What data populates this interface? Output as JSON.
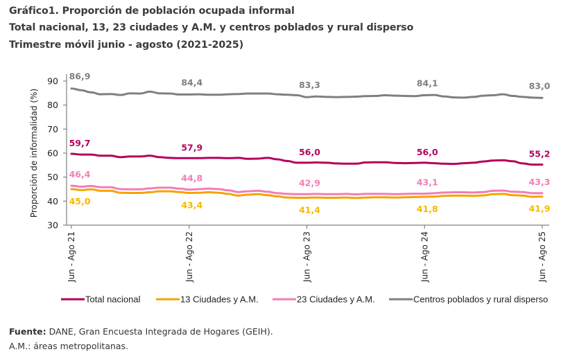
{
  "header": {
    "title_line1": "Gráfico1. Proporción de población ocupada informal",
    "title_line2": "Total nacional, 13, 23 ciudades y A.M. y centros poblados y rural disperso",
    "title_line3": "Trimestre móvil junio - agosto (2021-2025)"
  },
  "footer": {
    "source_label": "Fuente:",
    "source_text": " DANE, Gran Encuesta Integrada de Hogares (GEIH).",
    "note": "A.M.: áreas metropolitanas."
  },
  "chart_data": {
    "type": "line",
    "title": "Gráfico1. Proporción de población ocupada informal",
    "subtitle": "Total nacional, 13, 23 ciudades y A.M. y centros poblados y rural disperso — Trimestre móvil junio - agosto (2021-2025)",
    "xlabel": "",
    "ylabel": "Proporción de informalidad (%)",
    "ylim": [
      30,
      90
    ],
    "yticks": [
      30,
      40,
      50,
      60,
      70,
      80,
      90
    ],
    "grid": false,
    "legend_position": "bottom",
    "x_tick_labels": [
      "Jun - Ago 21",
      "Jun - Ago 22",
      "Jun - Ago 23",
      "Jun - Ago 24",
      "Jun - Ago 25"
    ],
    "x_tick_indices": [
      0,
      12,
      24,
      36,
      48
    ],
    "n_points": 49,
    "series": [
      {
        "name": "Total nacional",
        "color": "#B5005B",
        "values": [
          59.7,
          59.4,
          59.4,
          58.9,
          58.9,
          58.3,
          58.6,
          58.6,
          58.9,
          58.3,
          58.0,
          57.9,
          57.9,
          57.9,
          58.0,
          58.0,
          57.9,
          58.0,
          57.6,
          57.7,
          58.0,
          57.4,
          56.7,
          56.0,
          56.0,
          56.1,
          56.0,
          55.7,
          55.6,
          55.6,
          56.1,
          56.2,
          56.2,
          55.9,
          55.8,
          55.9,
          56.0,
          55.8,
          55.6,
          55.5,
          55.8,
          56.0,
          56.5,
          56.9,
          57.0,
          56.6,
          55.7,
          55.2,
          55.2
        ],
        "labels": [
          {
            "index": 0,
            "text": "59,7"
          },
          {
            "index": 12,
            "text": "57,9"
          },
          {
            "index": 24,
            "text": "56,0"
          },
          {
            "index": 36,
            "text": "56,0"
          },
          {
            "index": 48,
            "text": "55,2"
          }
        ]
      },
      {
        "name": "13 Ciudades y A.M.",
        "color": "#F5A300",
        "values": [
          45.0,
          44.6,
          44.9,
          44.3,
          44.3,
          43.5,
          43.4,
          43.4,
          43.7,
          44.1,
          44.1,
          43.8,
          43.4,
          43.5,
          43.7,
          43.5,
          43.0,
          42.3,
          42.7,
          42.9,
          42.5,
          42.0,
          41.5,
          41.4,
          41.4,
          41.5,
          41.4,
          41.4,
          41.5,
          41.3,
          41.5,
          41.6,
          41.6,
          41.5,
          41.6,
          41.7,
          41.8,
          41.9,
          42.2,
          42.3,
          42.3,
          42.2,
          42.4,
          42.9,
          43.0,
          42.5,
          42.3,
          41.8,
          41.9
        ],
        "labels": [
          {
            "index": 0,
            "text": "45,0"
          },
          {
            "index": 12,
            "text": "43,4"
          },
          {
            "index": 24,
            "text": "41,4"
          },
          {
            "index": 36,
            "text": "41,8"
          },
          {
            "index": 48,
            "text": "41,9"
          }
        ]
      },
      {
        "name": "23 Ciudades y A.M.",
        "color": "#F27DB5",
        "values": [
          46.4,
          46.0,
          46.3,
          45.8,
          45.8,
          45.0,
          44.9,
          44.9,
          45.3,
          45.6,
          45.6,
          45.2,
          44.8,
          45.0,
          45.2,
          45.0,
          44.5,
          43.8,
          44.1,
          44.3,
          43.9,
          43.3,
          43.0,
          42.9,
          42.9,
          43.0,
          42.9,
          42.9,
          43.0,
          42.8,
          43.0,
          43.0,
          43.0,
          42.9,
          43.0,
          43.1,
          43.1,
          43.3,
          43.6,
          43.7,
          43.7,
          43.6,
          43.8,
          44.3,
          44.4,
          43.9,
          43.8,
          43.3,
          43.3
        ],
        "labels": [
          {
            "index": 0,
            "text": "46,4"
          },
          {
            "index": 12,
            "text": "44,8"
          },
          {
            "index": 24,
            "text": "42,9"
          },
          {
            "index": 36,
            "text": "43,1"
          },
          {
            "index": 48,
            "text": "43,3"
          }
        ]
      },
      {
        "name": "Centros poblados y rural disperso",
        "color": "#7F7F7F",
        "values": [
          86.9,
          86.2,
          85.3,
          84.5,
          84.6,
          84.2,
          84.9,
          84.8,
          85.6,
          84.9,
          84.8,
          84.4,
          84.4,
          84.5,
          84.3,
          84.3,
          84.5,
          84.6,
          84.8,
          84.8,
          84.8,
          84.5,
          84.3,
          84.1,
          83.3,
          83.6,
          83.4,
          83.3,
          83.4,
          83.5,
          83.7,
          83.8,
          84.1,
          83.9,
          83.8,
          83.7,
          84.1,
          84.2,
          83.6,
          83.2,
          83.1,
          83.4,
          83.9,
          84.1,
          84.5,
          83.8,
          83.4,
          83.1,
          83.0
        ],
        "labels": [
          {
            "index": 0,
            "text": "86,9"
          },
          {
            "index": 12,
            "text": "84,4"
          },
          {
            "index": 24,
            "text": "83,3"
          },
          {
            "index": 36,
            "text": "84,1"
          },
          {
            "index": 48,
            "text": "83,0"
          }
        ]
      }
    ]
  }
}
